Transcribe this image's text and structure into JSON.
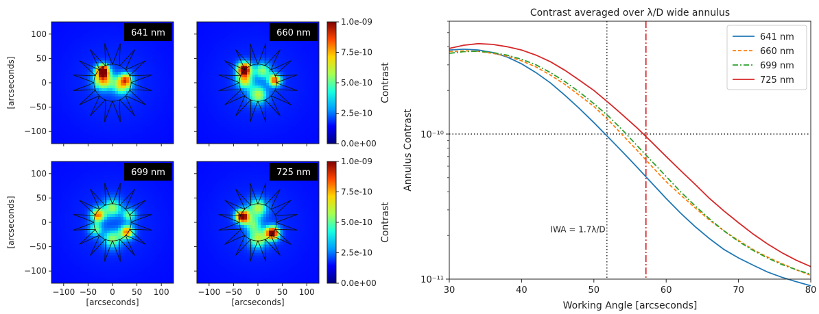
{
  "colorbar": {
    "label": "Contrast",
    "ticks": [
      "1.0e-09",
      "7.5e-10",
      "5.0e-10",
      "2.5e-10",
      "0.0e+00"
    ],
    "colors": [
      "#00007f",
      "#0000ff",
      "#00a0ff",
      "#19ffde",
      "#a6ff51",
      "#ffd400",
      "#ff4600",
      "#7f0000"
    ]
  },
  "chart_data": [
    {
      "type": "heatmap",
      "wavelength_label": "641 nm",
      "xlabel": "",
      "ylabel": "[arcseconds]",
      "x_ticks": [],
      "y_ticks": [
        "100",
        "50",
        "0",
        "−50",
        "−100"
      ],
      "extent": [
        -125,
        125,
        -125,
        125
      ],
      "clim": [
        0,
        1e-09
      ],
      "blobs": [
        {
          "x": -20,
          "y": 25,
          "sigma": 9,
          "value": 1e-09
        },
        {
          "x": -20,
          "y": 5,
          "sigma": 14,
          "value": 6.5e-10
        },
        {
          "x": 20,
          "y": -5,
          "sigma": 14,
          "value": 5.5e-10
        },
        {
          "x": 28,
          "y": 8,
          "sigma": 9,
          "value": 5e-10
        }
      ]
    },
    {
      "type": "heatmap",
      "wavelength_label": "660 nm",
      "xlabel": "",
      "ylabel": "",
      "x_ticks": [],
      "y_ticks": [],
      "extent": [
        -125,
        125,
        -125,
        125
      ],
      "clim": [
        0,
        1e-09
      ],
      "blobs": [
        {
          "x": -28,
          "y": 28,
          "sigma": 10,
          "value": 1e-09
        },
        {
          "x": -28,
          "y": 5,
          "sigma": 12,
          "value": 5.5e-10
        },
        {
          "x": 0,
          "y": -25,
          "sigma": 14,
          "value": 5e-10
        },
        {
          "x": 35,
          "y": 5,
          "sigma": 9,
          "value": 7.8e-10
        },
        {
          "x": 10,
          "y": 25,
          "sigma": 12,
          "value": 4.5e-10
        }
      ]
    },
    {
      "type": "heatmap",
      "wavelength_label": "699 nm",
      "xlabel": "[arcseconds]",
      "ylabel": "[arcseconds]",
      "x_ticks": [
        "−100",
        "−50",
        "0",
        "50",
        "100"
      ],
      "y_ticks": [
        "100",
        "50",
        "0",
        "−50",
        "−100"
      ],
      "extent": [
        -125,
        125,
        -125,
        125
      ],
      "clim": [
        0,
        1e-09
      ],
      "blobs": [
        {
          "x": -30,
          "y": 15,
          "sigma": 10,
          "value": 7e-10
        },
        {
          "x": 30,
          "y": -20,
          "sigma": 10,
          "value": 7e-10
        },
        {
          "x": 0,
          "y": 30,
          "sigma": 14,
          "value": 4.5e-10
        },
        {
          "x": 0,
          "y": -35,
          "sigma": 14,
          "value": 4.5e-10
        },
        {
          "x": -35,
          "y": -15,
          "sigma": 10,
          "value": 4e-10
        },
        {
          "x": 35,
          "y": 15,
          "sigma": 10,
          "value": 4e-10
        }
      ]
    },
    {
      "type": "heatmap",
      "wavelength_label": "725 nm",
      "xlabel": "[arcseconds]",
      "ylabel": "",
      "x_ticks": [
        "−100",
        "−50",
        "0",
        "50",
        "100"
      ],
      "y_ticks": [],
      "extent": [
        -125,
        125,
        -125,
        125
      ],
      "clim": [
        0,
        1e-09
      ],
      "blobs": [
        {
          "x": -32,
          "y": 12,
          "sigma": 10,
          "value": 1e-09
        },
        {
          "x": 30,
          "y": -22,
          "sigma": 10,
          "value": 1e-09
        },
        {
          "x": 0,
          "y": 30,
          "sigma": 14,
          "value": 5e-10
        },
        {
          "x": 0,
          "y": -35,
          "sigma": 14,
          "value": 5e-10
        },
        {
          "x": -10,
          "y": -5,
          "sigma": 12,
          "value": 3.5e-10
        }
      ]
    },
    {
      "type": "line",
      "title": "Contrast averaged over λ/D wide annulus",
      "xlabel": "Working Angle [arcseconds]",
      "ylabel": "Annulus Contrast",
      "xlim": [
        30,
        80
      ],
      "ylim": [
        1e-11,
        6e-10
      ],
      "yscale": "log",
      "x_ticks": [
        "30",
        "40",
        "50",
        "60",
        "70",
        "80"
      ],
      "y_ticks": [
        {
          "value": 1e-10,
          "label": "10⁻¹⁰"
        },
        {
          "value": 1e-11,
          "label": "10⁻¹¹"
        }
      ],
      "legend_position": "top-right",
      "x": [
        30,
        32,
        34,
        36,
        38,
        40,
        42,
        44,
        46,
        48,
        50,
        52,
        54,
        56,
        58,
        60,
        62,
        64,
        66,
        68,
        70,
        72,
        74,
        76,
        78,
        80
      ],
      "series": [
        {
          "name": "641 nm",
          "color": "#1f77b4",
          "dash": "solid",
          "values": [
            3.8e-10,
            3.85e-10,
            3.8e-10,
            3.65e-10,
            3.4e-10,
            3.05e-10,
            2.65e-10,
            2.25e-10,
            1.85e-10,
            1.5e-10,
            1.2e-10,
            9.5e-11,
            7.5e-11,
            5.9e-11,
            4.6e-11,
            3.6e-11,
            2.85e-11,
            2.3e-11,
            1.9e-11,
            1.6e-11,
            1.4e-11,
            1.25e-11,
            1.12e-11,
            1.03e-11,
            9.6e-12,
            9e-12
          ]
        },
        {
          "name": "660 nm",
          "color": "#ff7f0e",
          "dash": "dashed",
          "values": [
            3.7e-10,
            3.75e-10,
            3.72e-10,
            3.6e-10,
            3.45e-10,
            3.2e-10,
            2.9e-10,
            2.55e-10,
            2.2e-10,
            1.85e-10,
            1.55e-10,
            1.25e-10,
            9.8e-11,
            7.7e-11,
            6e-11,
            4.7e-11,
            3.8e-11,
            3.1e-11,
            2.55e-11,
            2.15e-11,
            1.85e-11,
            1.6e-11,
            1.42e-11,
            1.28e-11,
            1.16e-11,
            1.06e-11
          ]
        },
        {
          "name": "699 nm",
          "color": "#2ca02c",
          "dash": "dashdot",
          "values": [
            3.6e-10,
            3.7e-10,
            3.72e-10,
            3.65e-10,
            3.5e-10,
            3.28e-10,
            3e-10,
            2.65e-10,
            2.3e-10,
            1.95e-10,
            1.62e-10,
            1.33e-10,
            1.06e-10,
            8.3e-11,
            6.5e-11,
            5.1e-11,
            4e-11,
            3.2e-11,
            2.6e-11,
            2.15e-11,
            1.82e-11,
            1.58e-11,
            1.4e-11,
            1.26e-11,
            1.16e-11,
            1.08e-11
          ]
        },
        {
          "name": "725 nm",
          "color": "#d62728",
          "dash": "solid",
          "values": [
            3.9e-10,
            4.1e-10,
            4.2e-10,
            4.15e-10,
            4e-10,
            3.8e-10,
            3.5e-10,
            3.15e-10,
            2.75e-10,
            2.35e-10,
            2e-10,
            1.65e-10,
            1.35e-10,
            1.1e-10,
            8.8e-11,
            7e-11,
            5.6e-11,
            4.5e-11,
            3.6e-11,
            2.95e-11,
            2.45e-11,
            2.05e-11,
            1.75e-11,
            1.52e-11,
            1.35e-11,
            1.22e-11
          ]
        }
      ],
      "reference_lines": [
        {
          "orientation": "vertical",
          "value": 51.8,
          "style": "dotted",
          "color": "#333333"
        },
        {
          "orientation": "vertical",
          "value": 57.2,
          "style": "dashdot",
          "color": "#d62728"
        },
        {
          "orientation": "horizontal",
          "value": 1e-10,
          "style": "dotted",
          "color": "#333333"
        }
      ],
      "annotations": [
        {
          "text": "IWA  = 1.7λ/D",
          "x": 44.0,
          "y": 2.1e-11
        }
      ]
    }
  ]
}
